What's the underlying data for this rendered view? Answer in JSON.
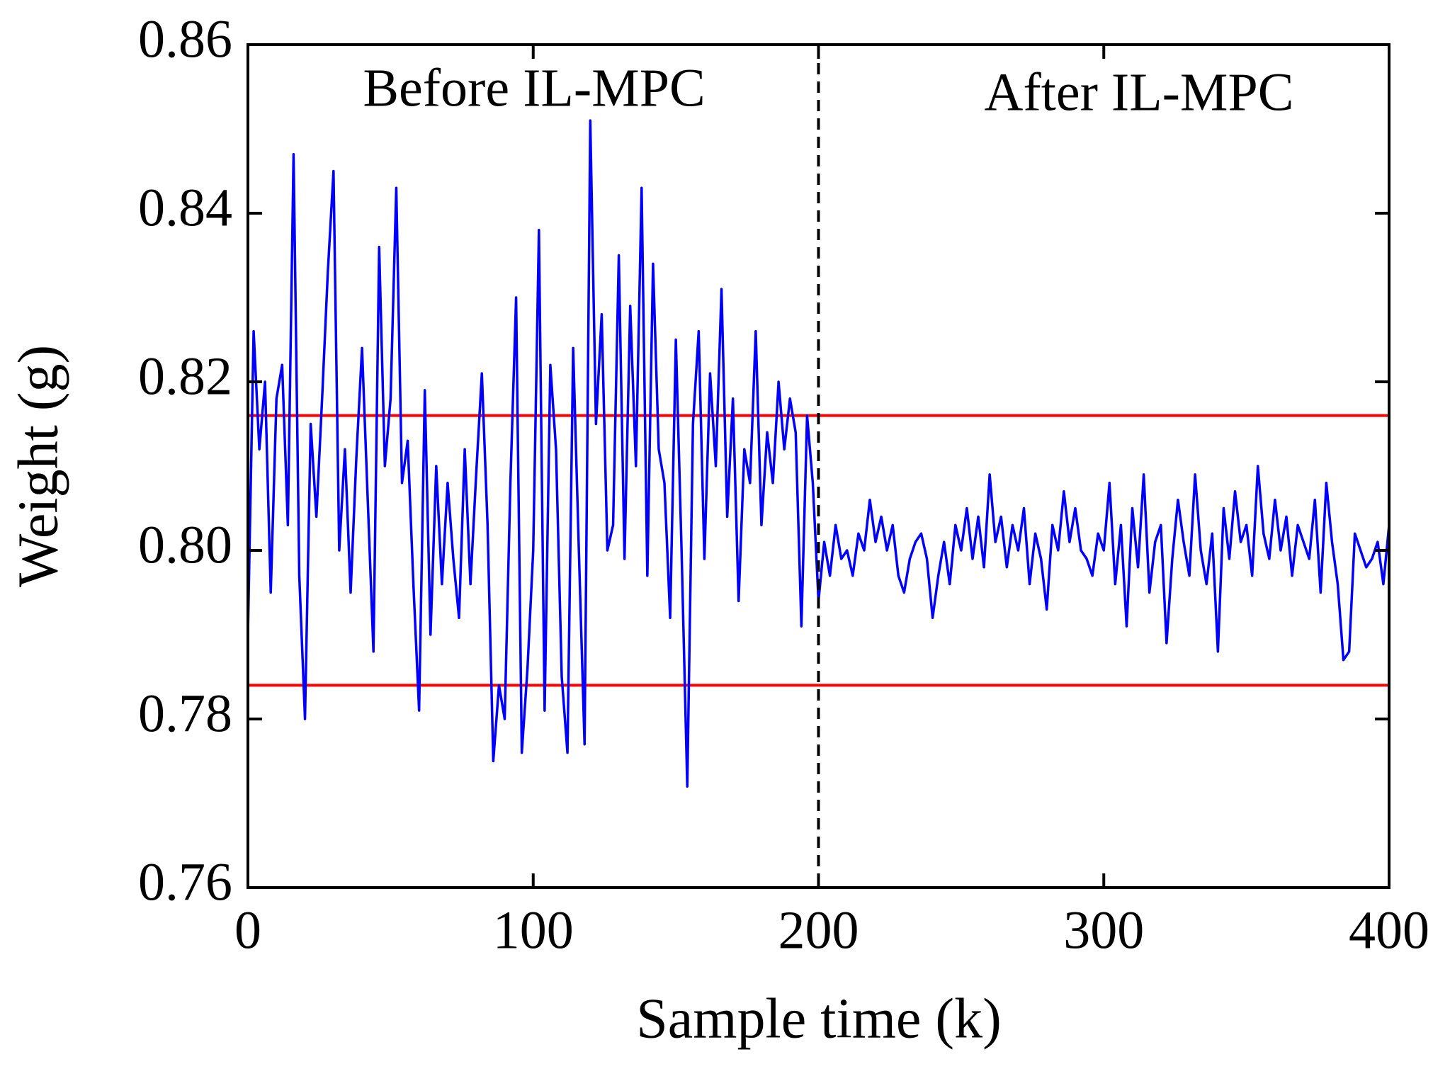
{
  "chart_data": {
    "type": "line",
    "xlabel": "Sample time (k)",
    "ylabel": "Weight (g)",
    "annotations": [
      "Before IL-MPC",
      "After IL-MPC"
    ],
    "xlim": [
      0,
      400
    ],
    "xticks": [
      0,
      100,
      200,
      300,
      400
    ],
    "ylim": [
      0.76,
      0.86
    ],
    "yticks": [
      0.76,
      0.78,
      {
        "value": 0.8,
        "label": "0.80"
      },
      0.82,
      0.84,
      0.86
    ],
    "grid": false,
    "reference_lines": [
      {
        "value": 0.816,
        "color": "#ff0000"
      },
      {
        "value": 0.784,
        "color": "#ff0000"
      }
    ],
    "vertical_lines": [
      {
        "value": 200,
        "color": "#000000",
        "style": "dashed"
      }
    ],
    "x": [
      0,
      2,
      4,
      6,
      8,
      10,
      12,
      14,
      16,
      18,
      20,
      22,
      24,
      26,
      28,
      30,
      32,
      34,
      36,
      38,
      40,
      42,
      44,
      46,
      48,
      50,
      52,
      54,
      56,
      58,
      60,
      62,
      64,
      66,
      68,
      70,
      72,
      74,
      76,
      78,
      80,
      82,
      84,
      86,
      88,
      90,
      92,
      94,
      96,
      98,
      100,
      102,
      104,
      106,
      108,
      110,
      112,
      114,
      116,
      118,
      120,
      122,
      124,
      126,
      128,
      130,
      132,
      134,
      136,
      138,
      140,
      142,
      144,
      146,
      148,
      150,
      152,
      154,
      156,
      158,
      160,
      162,
      164,
      166,
      168,
      170,
      172,
      174,
      176,
      178,
      180,
      182,
      184,
      186,
      188,
      190,
      192,
      194,
      196,
      198,
      200,
      202,
      204,
      206,
      208,
      210,
      212,
      214,
      216,
      218,
      220,
      222,
      224,
      226,
      228,
      230,
      232,
      234,
      236,
      238,
      240,
      242,
      244,
      246,
      248,
      250,
      252,
      254,
      256,
      258,
      260,
      262,
      264,
      266,
      268,
      270,
      272,
      274,
      276,
      278,
      280,
      282,
      284,
      286,
      288,
      290,
      292,
      294,
      296,
      298,
      300,
      302,
      304,
      306,
      308,
      310,
      312,
      314,
      316,
      318,
      320,
      322,
      324,
      326,
      328,
      330,
      332,
      334,
      336,
      338,
      340,
      342,
      344,
      346,
      348,
      350,
      352,
      354,
      356,
      358,
      360,
      362,
      364,
      366,
      368,
      370,
      372,
      374,
      376,
      378,
      380,
      382,
      384,
      386,
      388,
      390,
      392,
      394,
      396,
      398,
      400
    ],
    "series": [
      {
        "name": "Weight",
        "color": "#0000ff",
        "values": [
          0.79,
          0.826,
          0.812,
          0.82,
          0.795,
          0.818,
          0.822,
          0.803,
          0.847,
          0.797,
          0.78,
          0.815,
          0.804,
          0.818,
          0.833,
          0.845,
          0.8,
          0.812,
          0.795,
          0.811,
          0.824,
          0.806,
          0.788,
          0.836,
          0.81,
          0.818,
          0.843,
          0.808,
          0.813,
          0.796,
          0.781,
          0.819,
          0.79,
          0.81,
          0.796,
          0.808,
          0.799,
          0.792,
          0.812,
          0.796,
          0.809,
          0.821,
          0.803,
          0.775,
          0.784,
          0.78,
          0.808,
          0.83,
          0.776,
          0.786,
          0.8,
          0.838,
          0.781,
          0.822,
          0.812,
          0.785,
          0.776,
          0.824,
          0.8,
          0.777,
          0.851,
          0.815,
          0.828,
          0.8,
          0.803,
          0.835,
          0.799,
          0.829,
          0.81,
          0.843,
          0.797,
          0.834,
          0.812,
          0.808,
          0.792,
          0.825,
          0.8,
          0.772,
          0.815,
          0.826,
          0.799,
          0.821,
          0.81,
          0.831,
          0.804,
          0.818,
          0.794,
          0.812,
          0.808,
          0.826,
          0.803,
          0.814,
          0.808,
          0.82,
          0.812,
          0.818,
          0.814,
          0.791,
          0.816,
          0.808,
          0.794,
          0.801,
          0.797,
          0.803,
          0.799,
          0.8,
          0.797,
          0.802,
          0.8,
          0.806,
          0.801,
          0.804,
          0.8,
          0.803,
          0.797,
          0.795,
          0.799,
          0.801,
          0.802,
          0.799,
          0.792,
          0.797,
          0.801,
          0.796,
          0.803,
          0.8,
          0.805,
          0.799,
          0.804,
          0.798,
          0.809,
          0.801,
          0.804,
          0.798,
          0.803,
          0.8,
          0.805,
          0.796,
          0.802,
          0.799,
          0.793,
          0.803,
          0.8,
          0.807,
          0.801,
          0.805,
          0.8,
          0.799,
          0.797,
          0.802,
          0.8,
          0.808,
          0.796,
          0.803,
          0.791,
          0.805,
          0.798,
          0.809,
          0.795,
          0.801,
          0.803,
          0.789,
          0.799,
          0.806,
          0.801,
          0.797,
          0.809,
          0.8,
          0.796,
          0.802,
          0.788,
          0.805,
          0.799,
          0.807,
          0.801,
          0.803,
          0.797,
          0.81,
          0.802,
          0.799,
          0.806,
          0.8,
          0.804,
          0.797,
          0.803,
          0.801,
          0.799,
          0.806,
          0.795,
          0.808,
          0.801,
          0.796,
          0.787,
          0.788,
          0.802,
          0.8,
          0.798,
          0.799,
          0.801,
          0.796,
          0.803
        ]
      }
    ]
  }
}
